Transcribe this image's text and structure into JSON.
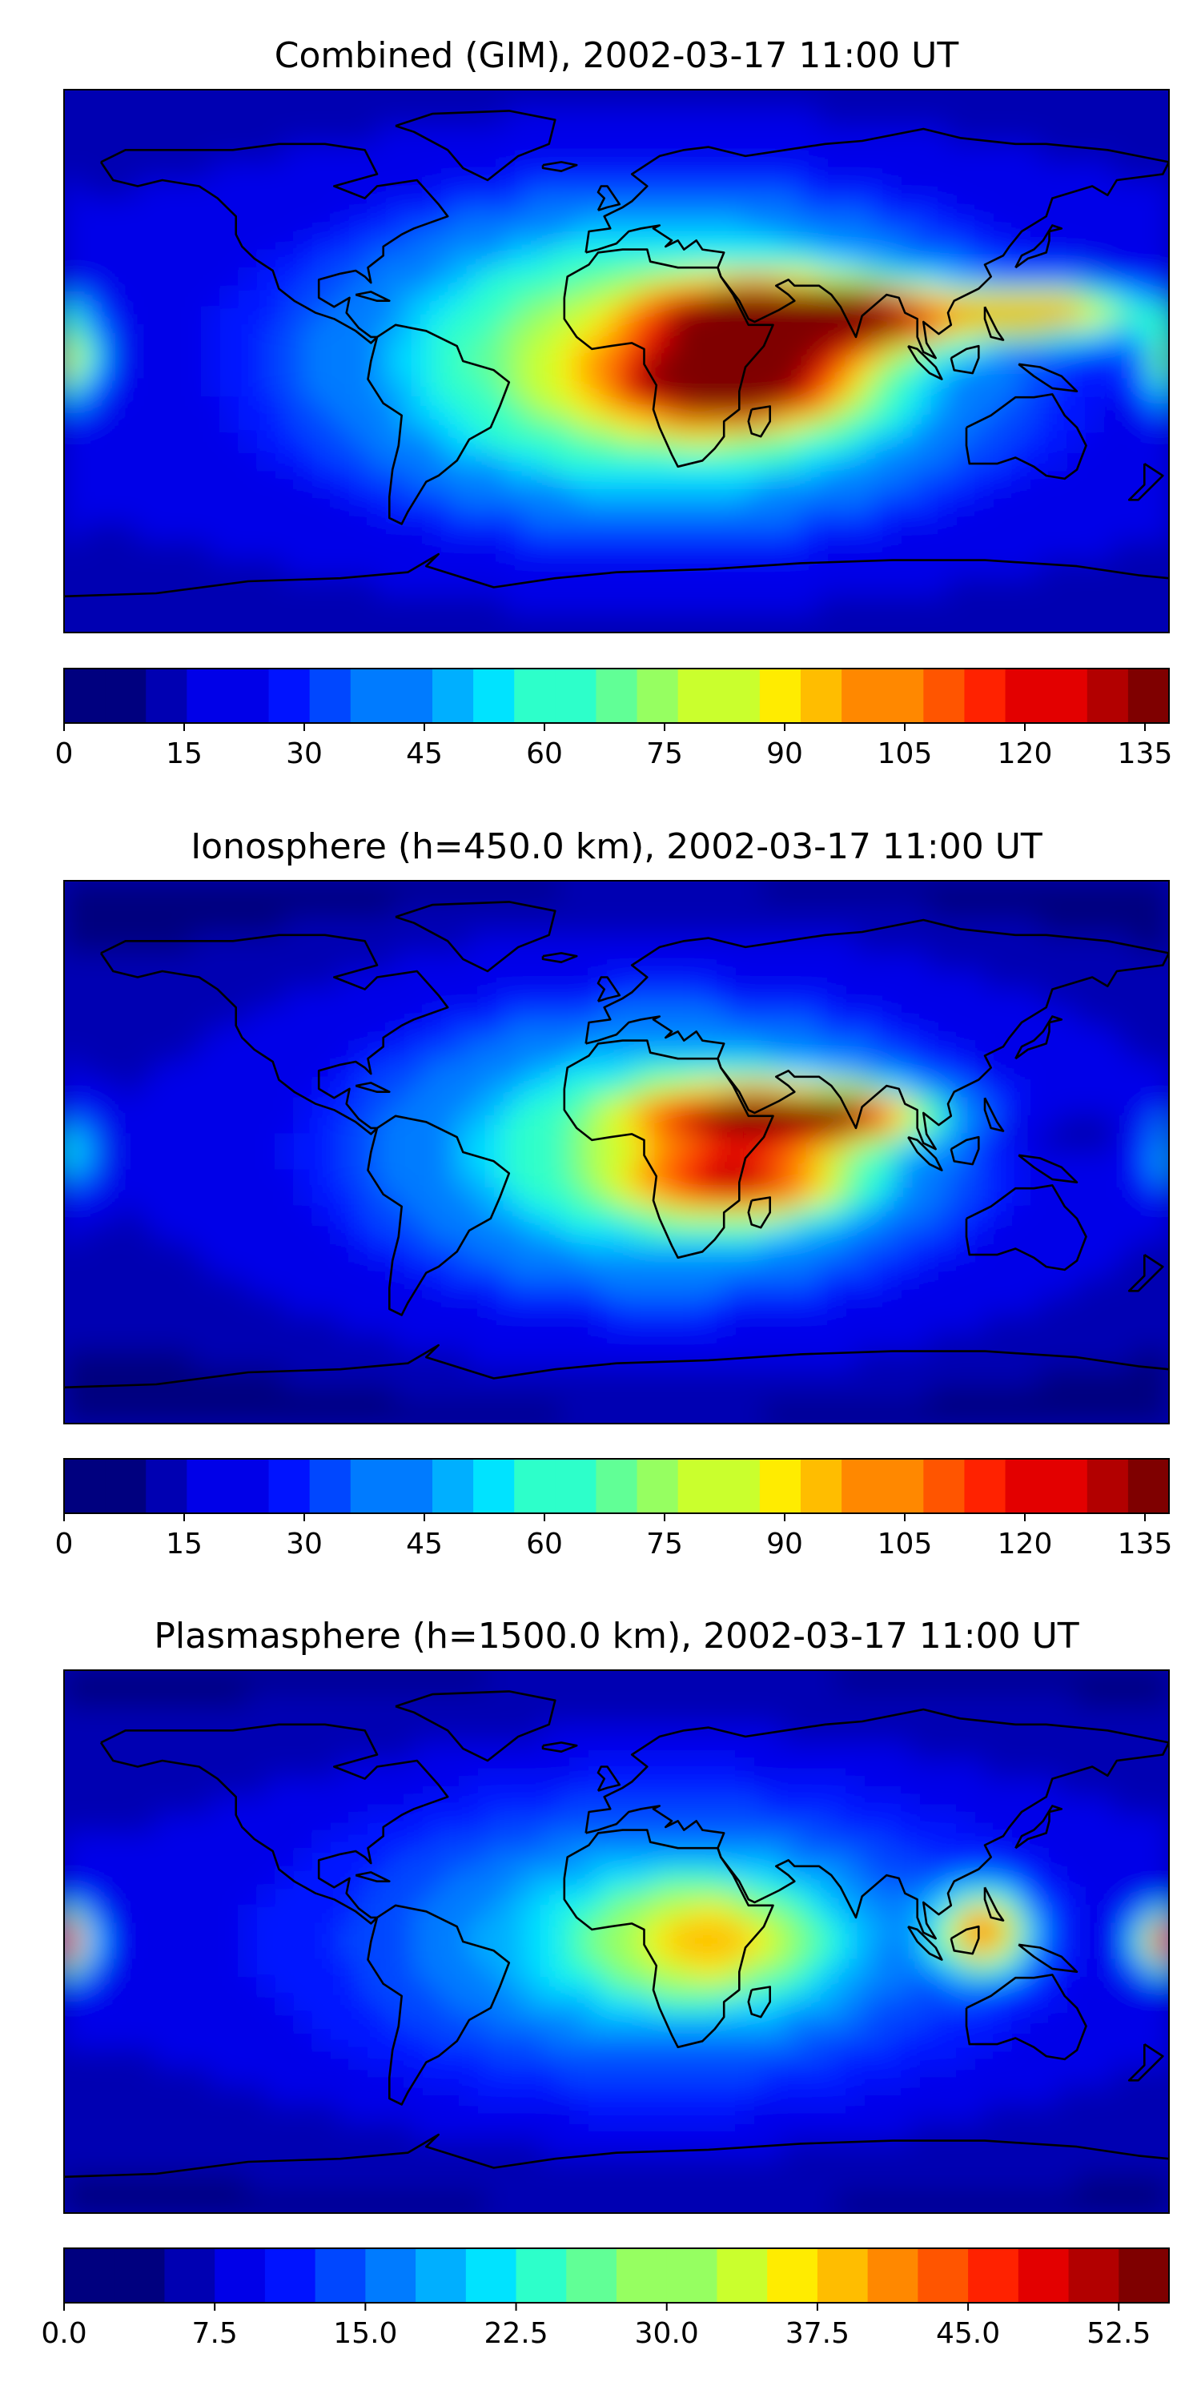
{
  "figure": {
    "colors": {
      "jet": [
        "#00007f",
        "#0000b2",
        "#0000e8",
        "#0013ff",
        "#0047ff",
        "#007bff",
        "#00afff",
        "#00e3ff",
        "#2dffca",
        "#61ff96",
        "#96ff61",
        "#caff2d",
        "#ffec00",
        "#ffbd00",
        "#ff8800",
        "#ff5500",
        "#ff2200",
        "#e30000",
        "#b20000",
        "#7f0000"
      ],
      "land_outline": "#000000"
    }
  },
  "panels": [
    {
      "id": "combined",
      "title": "Combined (GIM), 2002-03-17 11:00 UT",
      "colorbar": {
        "range": [
          0,
          138
        ],
        "levels": 27,
        "ticks": [
          0,
          15,
          30,
          45,
          60,
          75,
          90,
          105,
          120,
          135
        ],
        "tick_labels": [
          "0",
          "15",
          "30",
          "45",
          "60",
          "75",
          "90",
          "105",
          "120",
          "135"
        ]
      },
      "features": [
        {
          "lon": 45,
          "lat": 14,
          "value": 128,
          "spread_lon": 22,
          "spread_lat": 8
        },
        {
          "lon": 80,
          "lat": 14,
          "value": 120,
          "spread_lon": 20,
          "spread_lat": 7
        },
        {
          "lon": 140,
          "lat": 16,
          "value": 105,
          "spread_lon": 25,
          "spread_lat": 6
        },
        {
          "lon": 38,
          "lat": -8,
          "value": 118,
          "spread_lon": 25,
          "spread_lat": 9
        },
        {
          "lon": -178,
          "lat": 0,
          "value": 90,
          "spread_lon": 7,
          "spread_lat": 10
        }
      ],
      "base_value": 30,
      "day_peak": 70
    },
    {
      "id": "ionosphere",
      "title": "Ionosphere  (h=450.0 km), 2002-03-17 11:00 UT",
      "colorbar": {
        "range": [
          0,
          138
        ],
        "levels": 27,
        "ticks": [
          0,
          15,
          30,
          45,
          60,
          75,
          90,
          105,
          120,
          135
        ],
        "tick_labels": [
          "0",
          "15",
          "30",
          "45",
          "60",
          "75",
          "90",
          "105",
          "120",
          "135"
        ]
      },
      "features": [
        {
          "lon": 40,
          "lat": 12,
          "value": 95,
          "spread_lon": 25,
          "spread_lat": 7
        },
        {
          "lon": 75,
          "lat": 12,
          "value": 92,
          "spread_lon": 20,
          "spread_lat": 6
        },
        {
          "lon": 40,
          "lat": -10,
          "value": 90,
          "spread_lon": 25,
          "spread_lat": 8
        },
        {
          "lon": 148,
          "lat": 5,
          "value": 10,
          "spread_lon": 15,
          "spread_lat": 6
        },
        {
          "lon": -178,
          "lat": 0,
          "value": 60,
          "spread_lon": 8,
          "spread_lat": 10
        }
      ],
      "base_value": 22,
      "day_peak": 55
    },
    {
      "id": "plasmasphere",
      "title": "Plasmasphere (h=1500.0 km), 2002-03-17 11:00 UT",
      "colorbar": {
        "range": [
          0,
          55
        ],
        "levels": 22,
        "ticks": [
          0,
          7.5,
          15,
          22.5,
          30,
          37.5,
          45,
          52.5
        ],
        "tick_labels": [
          "0.0",
          "7.5",
          "15.0",
          "22.5",
          "30.0",
          "37.5",
          "45.0",
          "52.5"
        ]
      },
      "features": [
        {
          "lon": 120,
          "lat": 3,
          "value": 46,
          "spread_lon": 10,
          "spread_lat": 9
        },
        {
          "lon": 178,
          "lat": 0,
          "value": 38,
          "spread_lon": 6,
          "spread_lat": 6
        },
        {
          "lon": -178,
          "lat": 0,
          "value": 34,
          "spread_lon": 6,
          "spread_lat": 8
        },
        {
          "lon": 30,
          "lat": 0,
          "value": 32,
          "spread_lon": 25,
          "spread_lat": 12
        }
      ],
      "base_value": 13,
      "day_peak": 14
    }
  ]
}
